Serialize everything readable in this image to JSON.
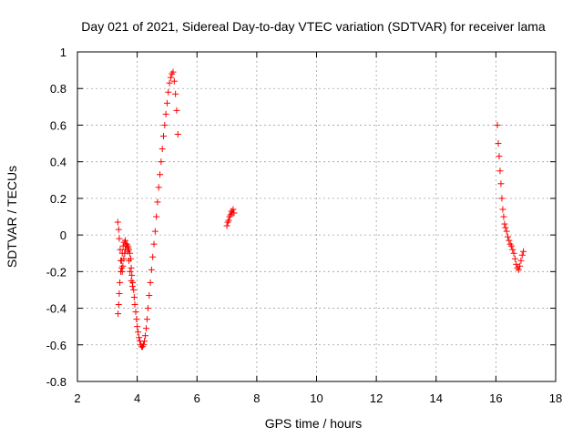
{
  "chart_data": {
    "type": "scatter",
    "title": "Day 021 of 2021, Sidereal Day-to-day VTEC variation (SDTVAR) for receiver lama",
    "xlabel": "GPS time / hours",
    "ylabel": "SDTVAR / TECUs",
    "xlim": [
      2,
      18
    ],
    "ylim": [
      -0.8,
      1.0
    ],
    "xticks": [
      2,
      4,
      6,
      8,
      10,
      12,
      14,
      16,
      18
    ],
    "yticks": [
      -0.8,
      -0.6,
      -0.4,
      -0.2,
      0,
      0.2,
      0.4,
      0.6,
      0.8,
      1
    ],
    "xtick_labels": [
      "2",
      "4",
      "6",
      "8",
      "10",
      "12",
      "14",
      "16",
      "18"
    ],
    "ytick_labels": [
      "-0.8",
      "-0.6",
      "-0.4",
      "-0.2",
      "0",
      "0.2",
      "0.4",
      "0.6",
      "0.8",
      "1"
    ],
    "grid": true,
    "marker": "+",
    "color": "#ff0000",
    "series": [
      {
        "name": "SDTVAR",
        "x": [
          3.35,
          3.38,
          3.4,
          3.43,
          3.45,
          3.48,
          3.5,
          3.52,
          3.55,
          3.58,
          3.6,
          3.62,
          3.65,
          3.68,
          3.7,
          3.72,
          3.75,
          3.78,
          3.8,
          3.82,
          3.85,
          3.88,
          3.9,
          3.92,
          3.95,
          3.98,
          4.0,
          4.03,
          4.06,
          4.09,
          4.12,
          4.15,
          4.18,
          4.21,
          4.24,
          4.27,
          4.3,
          4.33,
          4.36,
          4.4,
          4.44,
          4.48,
          4.52,
          4.56,
          4.6,
          4.64,
          4.68,
          4.72,
          4.76,
          4.8,
          4.84,
          4.88,
          4.92,
          4.96,
          5.0,
          5.04,
          5.08,
          5.12,
          5.16,
          5.2,
          5.24,
          5.28,
          5.32,
          5.36,
          3.36,
          3.38,
          3.4,
          3.42,
          3.45,
          3.48,
          3.5,
          3.53,
          3.56,
          3.6,
          3.64,
          3.68,
          3.72,
          3.76,
          3.8,
          3.84,
          7.0,
          7.03,
          7.06,
          7.09,
          7.12,
          7.15,
          7.18,
          7.21,
          7.24,
          16.05,
          16.08,
          16.11,
          16.14,
          16.17,
          16.2,
          16.23,
          16.26,
          16.29,
          16.32,
          16.36,
          16.4,
          16.44,
          16.48,
          16.52,
          16.56,
          16.6,
          16.64,
          16.68,
          16.72,
          16.76,
          16.8,
          16.84,
          16.88,
          16.92
        ],
        "y": [
          0.07,
          0.03,
          -0.02,
          -0.08,
          -0.14,
          -0.18,
          -0.2,
          -0.17,
          -0.13,
          -0.1,
          -0.08,
          -0.06,
          -0.05,
          -0.06,
          -0.07,
          -0.08,
          -0.1,
          -0.13,
          -0.18,
          -0.22,
          -0.26,
          -0.3,
          -0.34,
          -0.38,
          -0.42,
          -0.46,
          -0.5,
          -0.53,
          -0.56,
          -0.58,
          -0.6,
          -0.61,
          -0.61,
          -0.6,
          -0.58,
          -0.55,
          -0.51,
          -0.46,
          -0.4,
          -0.33,
          -0.26,
          -0.19,
          -0.12,
          -0.05,
          0.02,
          0.1,
          0.18,
          0.26,
          0.33,
          0.4,
          0.47,
          0.54,
          0.6,
          0.66,
          0.72,
          0.78,
          0.83,
          0.86,
          0.88,
          0.89,
          0.84,
          0.77,
          0.68,
          0.55,
          -0.43,
          -0.38,
          -0.32,
          -0.26,
          -0.2,
          -0.14,
          -0.1,
          -0.06,
          -0.04,
          -0.03,
          -0.05,
          -0.09,
          -0.14,
          -0.2,
          -0.25,
          -0.28,
          0.05,
          0.07,
          0.08,
          0.1,
          0.11,
          0.13,
          0.12,
          0.14,
          0.12,
          0.6,
          0.5,
          0.43,
          0.35,
          0.28,
          0.2,
          0.14,
          0.1,
          0.06,
          0.04,
          0.02,
          -0.01,
          -0.03,
          -0.05,
          -0.06,
          -0.08,
          -0.1,
          -0.13,
          -0.16,
          -0.18,
          -0.19,
          -0.17,
          -0.14,
          -0.11,
          -0.09
        ]
      }
    ]
  }
}
